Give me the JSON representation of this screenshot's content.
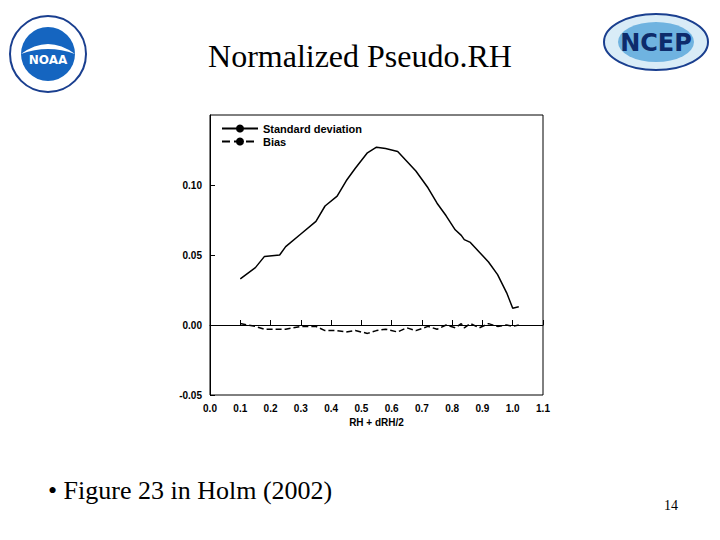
{
  "header": {
    "title": "Normalized Pseudo.RH",
    "logos": [
      "NOAA",
      "NCEP"
    ]
  },
  "chart_data": {
    "type": "line",
    "x": [
      0.1,
      0.15,
      0.18,
      0.23,
      0.25,
      0.3,
      0.35,
      0.38,
      0.42,
      0.45,
      0.48,
      0.52,
      0.55,
      0.58,
      0.62,
      0.65,
      0.68,
      0.72,
      0.75,
      0.78,
      0.81,
      0.83,
      0.84,
      0.86,
      0.89,
      0.92,
      0.95,
      0.98,
      1.0,
      1.02
    ],
    "series": [
      {
        "name": "Standard deviation",
        "color": "#000000",
        "line_style": "solid",
        "values": [
          0.033,
          0.041,
          0.049,
          0.05,
          0.056,
          0.065,
          0.074,
          0.085,
          0.092,
          0.103,
          0.112,
          0.123,
          0.127,
          0.126,
          0.124,
          0.117,
          0.11,
          0.098,
          0.087,
          0.078,
          0.068,
          0.064,
          0.061,
          0.059,
          0.052,
          0.045,
          0.036,
          0.023,
          0.012,
          0.013
        ]
      },
      {
        "name": "Bias",
        "color": "#000000",
        "line_style": "dashed",
        "values": [
          0.001,
          -0.001,
          -0.003,
          -0.003,
          -0.003,
          -0.001,
          -0.001,
          -0.004,
          -0.004,
          -0.005,
          -0.004,
          -0.006,
          -0.004,
          -0.003,
          -0.005,
          -0.002,
          -0.004,
          -0.001,
          -0.003,
          0.0,
          -0.002,
          0.001,
          -0.002,
          0.001,
          -0.002,
          0.001,
          -0.001,
          0.0,
          -0.001,
          0.0
        ]
      }
    ],
    "xlabel": "RH + dRH/2",
    "xlim": [
      0,
      1.1
    ],
    "xticks": [
      {
        "value": 0,
        "label": "0.0"
      },
      0.1,
      0.2,
      0.3,
      0.4,
      0.5,
      0.6,
      0.7,
      0.8,
      0.9,
      {
        "value": 1,
        "label": "1.0"
      },
      1.1
    ],
    "ylim": [
      -0.05,
      0.15
    ],
    "yticks": [
      -0.05,
      {
        "value": 0,
        "label": "0.00"
      },
      0.05,
      {
        "value": 0.1,
        "label": "0.10"
      }
    ],
    "legend": "upper left"
  },
  "footer": {
    "bullet": "• Figure 23 in Holm (2002)",
    "page": "14"
  }
}
